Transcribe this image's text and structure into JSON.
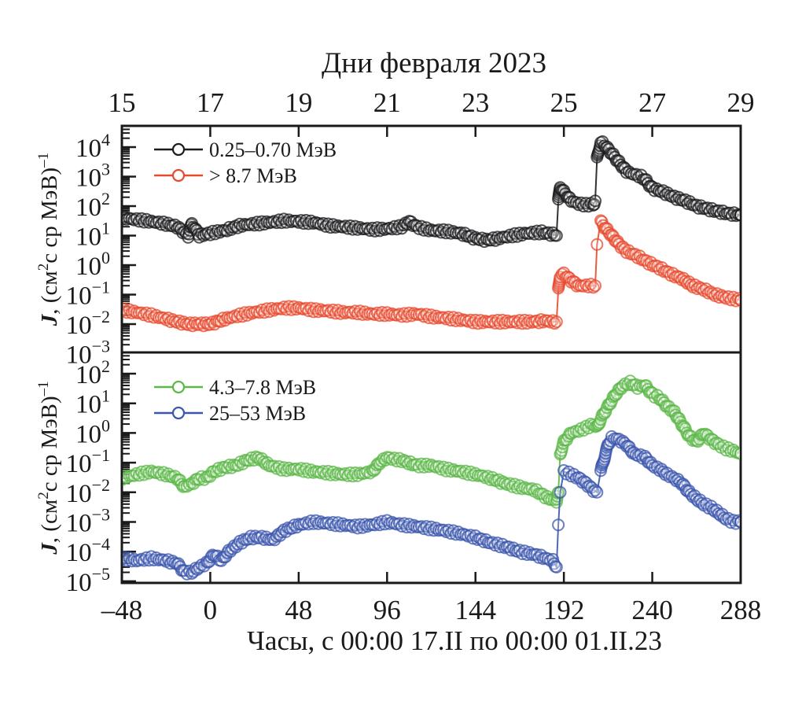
{
  "chart_data": {
    "type": "scatter",
    "title": "Дни февраля 2023",
    "xlabel": "Часы, с 00:00 17.II по 00:00 01.II.23",
    "xlim": [
      -48,
      288
    ],
    "x_ticks": [
      -48,
      0,
      48,
      96,
      144,
      192,
      240,
      288
    ],
    "x_tick_labels": [
      "–48",
      "0",
      "48",
      "96",
      "144",
      "192",
      "240",
      "288"
    ],
    "top_axis": {
      "label": "Дни февраля 2023",
      "ticks_hours": [
        -48,
        0,
        48,
        96,
        144,
        192,
        240,
        288
      ],
      "tick_labels": [
        "15",
        "17",
        "19",
        "21",
        "23",
        "25",
        "27",
        "29"
      ]
    },
    "panels": [
      {
        "name": "top",
        "ylabel": "J, (см²с ср МэВ)⁻¹",
        "ylabel_parts": {
          "italic": "J",
          "rest": ", (см",
          "sup1": "2",
          "mid": "с ср МэВ)",
          "sup2": "–1"
        },
        "yscale": "log",
        "ylim_exp": [
          -3,
          4.72
        ],
        "y_tick_exponents": [
          4,
          3,
          2,
          1,
          0,
          -1,
          -2,
          -3
        ],
        "legend_position": "top-left",
        "series": [
          {
            "name": "0.25–0.70 МэВ",
            "color": "#1c1c1f",
            "x": [
              -48,
              -40,
              -32,
              -24,
              -18,
              -12,
              -10,
              -6,
              0,
              8,
              16,
              24,
              32,
              40,
              48,
              56,
              64,
              72,
              80,
              88,
              96,
              104,
              108,
              112,
              120,
              128,
              136,
              144,
              150,
              156,
              164,
              172,
              180,
              186,
              188,
              189,
              190,
              192,
              196,
              200,
              204,
              208,
              209,
              210,
              212,
              214,
              218,
              222,
              226,
              230,
              234,
              236,
              240,
              246,
              252,
              258,
              264,
              270,
              276,
              282,
              288
            ],
            "y": [
              40,
              35,
              30,
              25,
              20,
              10,
              25,
              10,
              12,
              15,
              22,
              25,
              28,
              32,
              30,
              28,
              22,
              20,
              18,
              16,
              17,
              20,
              30,
              20,
              15,
              14,
              12,
              8,
              7,
              8,
              10,
              12,
              13,
              11,
              10,
              150,
              450,
              300,
              150,
              120,
              110,
              115,
              150,
              4000,
              15000,
              12000,
              6000,
              3000,
              1500,
              1200,
              1000,
              800,
              400,
              300,
              200,
              150,
              100,
              80,
              65,
              55,
              50
            ]
          },
          {
            "name": "> 8.7 МэВ",
            "color": "#e84a2e",
            "x": [
              -48,
              -40,
              -32,
              -24,
              -18,
              -12,
              -6,
              0,
              8,
              16,
              24,
              32,
              40,
              48,
              56,
              64,
              72,
              80,
              88,
              96,
              104,
              112,
              120,
              128,
              136,
              144,
              152,
              160,
              168,
              176,
              182,
              186,
              188,
              189,
              190,
              192,
              196,
              200,
              204,
              208,
              209,
              210,
              212,
              214,
              218,
              222,
              226,
              232,
              238,
              244,
              250,
              256,
              262,
              268,
              274,
              280,
              288
            ],
            "y": [
              0.03,
              0.025,
              0.02,
              0.015,
              0.012,
              0.01,
              0.01,
              0.01,
              0.015,
              0.02,
              0.025,
              0.03,
              0.035,
              0.035,
              0.03,
              0.028,
              0.025,
              0.025,
              0.022,
              0.022,
              0.02,
              0.022,
              0.018,
              0.016,
              0.014,
              0.012,
              0.012,
              0.012,
              0.012,
              0.012,
              0.013,
              0.012,
              0.012,
              0.15,
              0.45,
              0.5,
              0.3,
              0.2,
              0.2,
              0.2,
              0.2,
              5,
              30,
              20,
              10,
              5,
              3,
              2,
              1.2,
              0.8,
              0.5,
              0.35,
              0.2,
              0.15,
              0.1,
              0.08,
              0.065
            ]
          }
        ]
      },
      {
        "name": "bottom",
        "ylabel": "J, (см²с ср МэВ)⁻¹",
        "ylabel_parts": {
          "italic": "J",
          "rest": ", (см",
          "sup1": "2",
          "mid": "с ср МэВ)",
          "sup2": "–1"
        },
        "yscale": "log",
        "ylim_exp": [
          -5.1,
          2.7
        ],
        "y_tick_exponents": [
          2,
          1,
          0,
          -1,
          -2,
          -3,
          -4,
          -5
        ],
        "legend_position": "top-left",
        "series": [
          {
            "name": "4.3–7.8 МэВ",
            "color": "#5cb848",
            "x": [
              -48,
              -40,
              -32,
              -24,
              -18,
              -14,
              -10,
              -6,
              -2,
              2,
              8,
              14,
              20,
              26,
              32,
              40,
              48,
              56,
              64,
              72,
              80,
              88,
              92,
              96,
              100,
              104,
              112,
              120,
              128,
              136,
              144,
              152,
              160,
              168,
              176,
              184,
              188,
              189,
              190,
              192,
              196,
              200,
              204,
              208,
              210,
              212,
              216,
              220,
              224,
              228,
              232,
              236,
              240,
              244,
              248,
              252,
              256,
              260,
              264,
              268,
              272,
              276,
              280,
              284,
              288
            ],
            "y": [
              0.03,
              0.04,
              0.05,
              0.04,
              0.03,
              0.015,
              0.02,
              0.03,
              0.03,
              0.05,
              0.07,
              0.08,
              0.12,
              0.15,
              0.08,
              0.06,
              0.06,
              0.05,
              0.045,
              0.04,
              0.04,
              0.05,
              0.1,
              0.15,
              0.13,
              0.12,
              0.08,
              0.08,
              0.06,
              0.05,
              0.04,
              0.03,
              0.02,
              0.015,
              0.012,
              0.006,
              0.005,
              0.01,
              0.2,
              0.5,
              1,
              1.2,
              1.5,
              2,
              1.5,
              3,
              8,
              20,
              40,
              50,
              35,
              40,
              20,
              15,
              8,
              5,
              2,
              0.8,
              0.5,
              1,
              0.6,
              0.4,
              0.3,
              0.25,
              0.2
            ]
          },
          {
            "name": "25–53 МэВ",
            "color": "#3b56ad",
            "x": [
              -48,
              -40,
              -32,
              -24,
              -18,
              -14,
              -10,
              -6,
              -2,
              2,
              6,
              10,
              16,
              22,
              28,
              34,
              40,
              48,
              56,
              64,
              72,
              80,
              88,
              96,
              104,
              112,
              120,
              128,
              136,
              144,
              152,
              160,
              168,
              176,
              182,
              186,
              188,
              189,
              190,
              192,
              196,
              200,
              204,
              208,
              210,
              212,
              214,
              216,
              218,
              222,
              226,
              230,
              236,
              240,
              244,
              248,
              252,
              256,
              260,
              264,
              268,
              272,
              276,
              280,
              284,
              288
            ],
            "y": [
              6e-05,
              5e-05,
              6e-05,
              5e-05,
              4e-05,
              2e-05,
              2e-05,
              3e-05,
              4e-05,
              8e-05,
              5e-05,
              0.0001,
              0.0002,
              0.0003,
              0.0003,
              0.00025,
              0.0005,
              0.0008,
              0.001,
              0.0009,
              0.0008,
              0.0007,
              0.0008,
              0.001,
              0.0008,
              0.0007,
              0.0006,
              0.0005,
              0.0004,
              0.0003,
              0.0002,
              0.00015,
              0.0001,
              8e-05,
              6e-05,
              5e-05,
              3e-05,
              0.0008,
              0.01,
              0.05,
              0.04,
              0.03,
              0.02,
              0.012,
              0.01,
              0.05,
              0.15,
              0.4,
              0.7,
              0.6,
              0.4,
              0.2,
              0.15,
              0.08,
              0.06,
              0.04,
              0.03,
              0.02,
              0.01,
              0.006,
              0.004,
              0.003,
              0.002,
              0.0013,
              0.001,
              0.001
            ]
          }
        ]
      }
    ]
  }
}
